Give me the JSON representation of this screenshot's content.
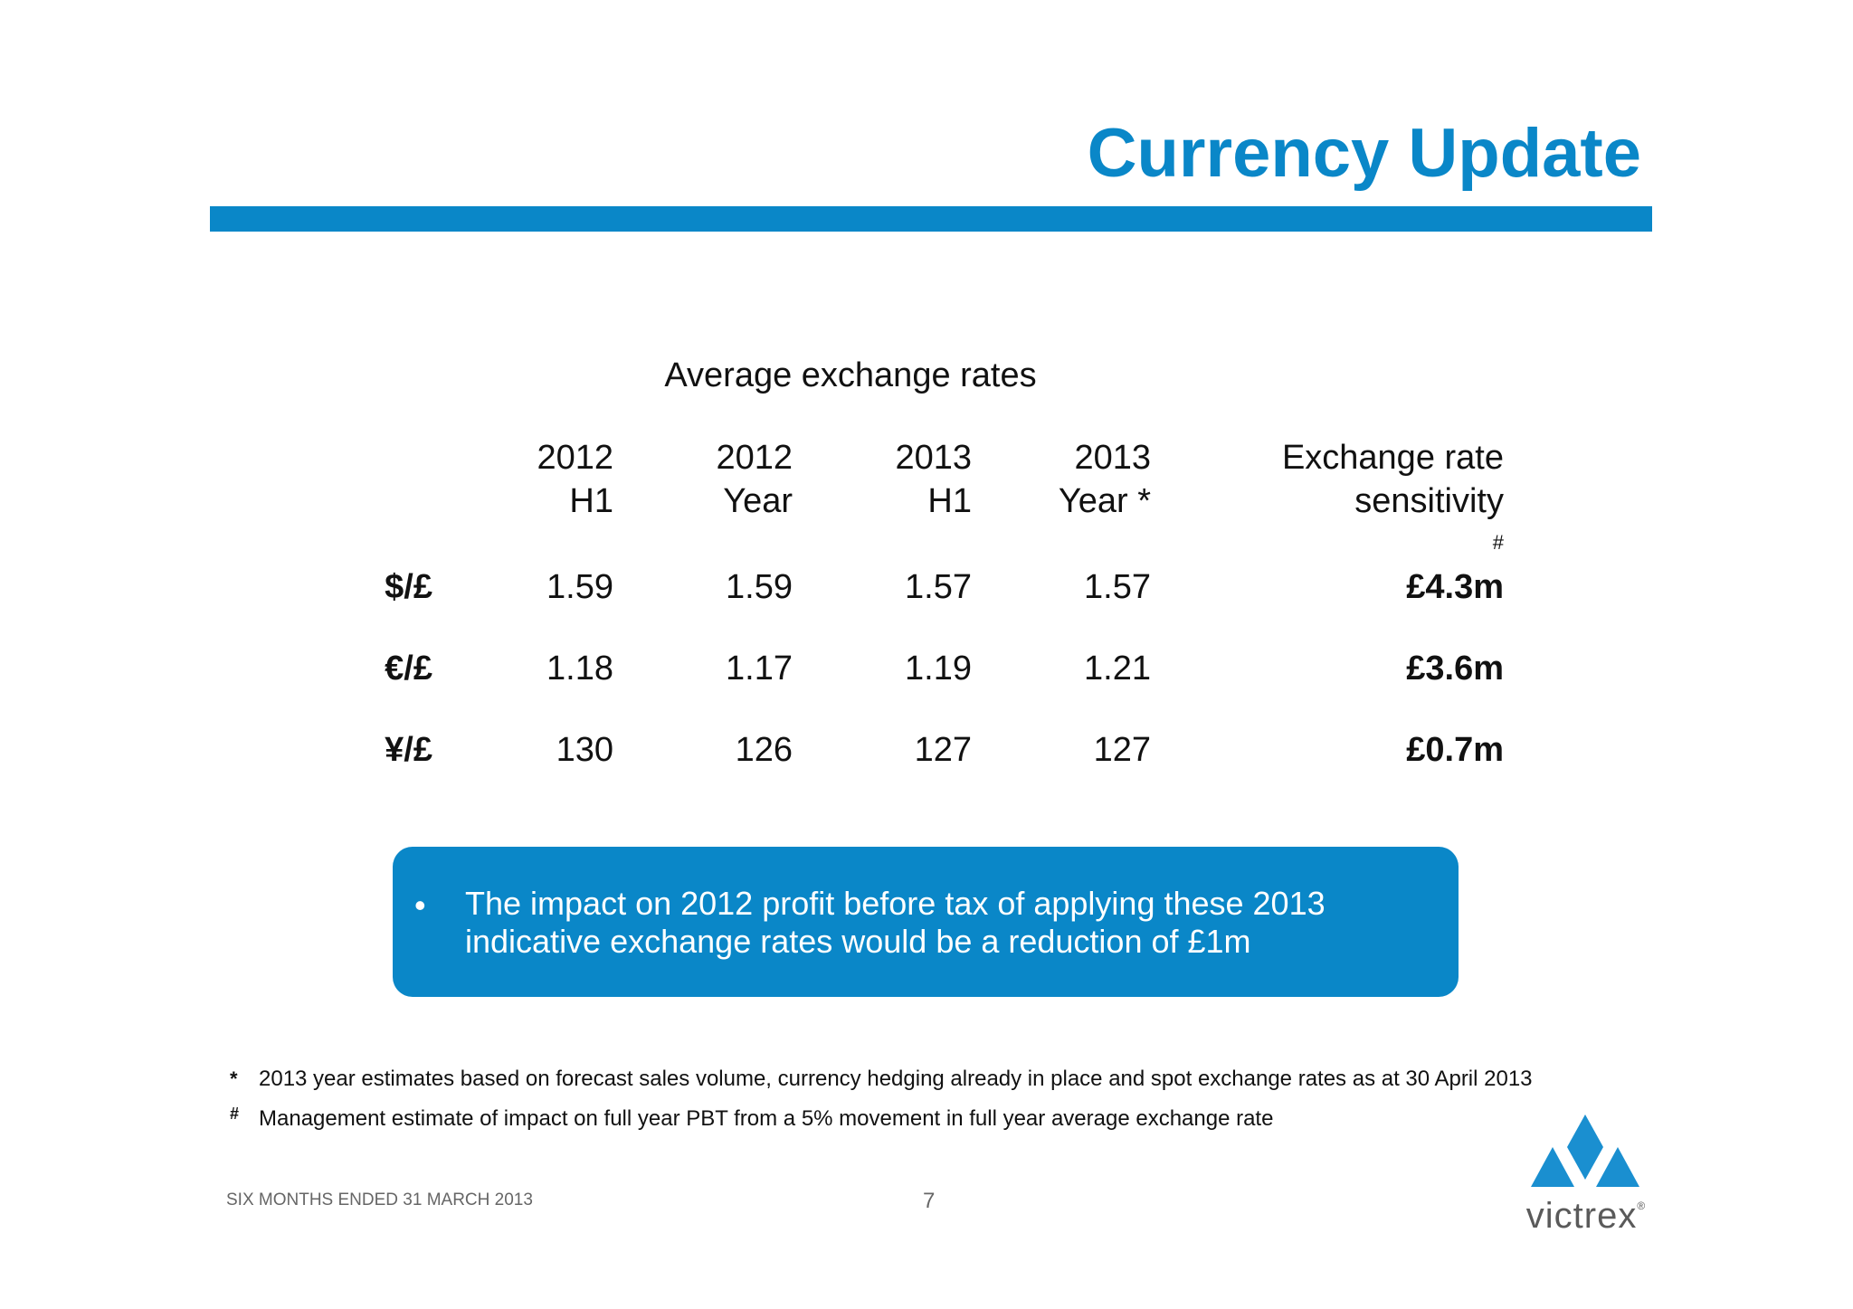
{
  "title": "Currency Update",
  "table": {
    "caption": "Average exchange rates",
    "headers": [
      {
        "line1": "2012",
        "line2": "H1"
      },
      {
        "line1": "2012",
        "line2": "Year"
      },
      {
        "line1": "2013",
        "line2": "H1"
      },
      {
        "line1": "2013",
        "line2": "Year *"
      },
      {
        "line1": "Exchange rate",
        "line2": "sensitivity",
        "mark": "#"
      }
    ],
    "rows": [
      {
        "currency": "$/£",
        "values": [
          "1.59",
          "1.59",
          "1.57",
          "1.57"
        ],
        "sensitivity": "£4.3m"
      },
      {
        "currency": "€/£",
        "values": [
          "1.18",
          "1.17",
          "1.19",
          "1.21"
        ],
        "sensitivity": "£3.6m"
      },
      {
        "currency": "¥/£",
        "values": [
          "130",
          "126",
          "127",
          "127"
        ],
        "sensitivity": "£0.7m"
      }
    ]
  },
  "callout": {
    "bullet": "•",
    "text": "The impact on 2012 profit before tax of applying these 2013 indicative exchange rates would be a reduction of £1m"
  },
  "footnotes": [
    {
      "mark": "*",
      "text": "2013 year estimates based on forecast sales volume, currency hedging already in place and spot exchange rates as at 30 April 2013"
    },
    {
      "mark": "#",
      "text": "Management estimate of impact on full year PBT from a 5% movement in full year average exchange rate"
    }
  ],
  "footer": {
    "left": "SIX MONTHS ENDED 31 MARCH 2013",
    "page": "7"
  },
  "logo": {
    "word": "victrex",
    "registered": "®",
    "color": "#1a8fd0"
  }
}
